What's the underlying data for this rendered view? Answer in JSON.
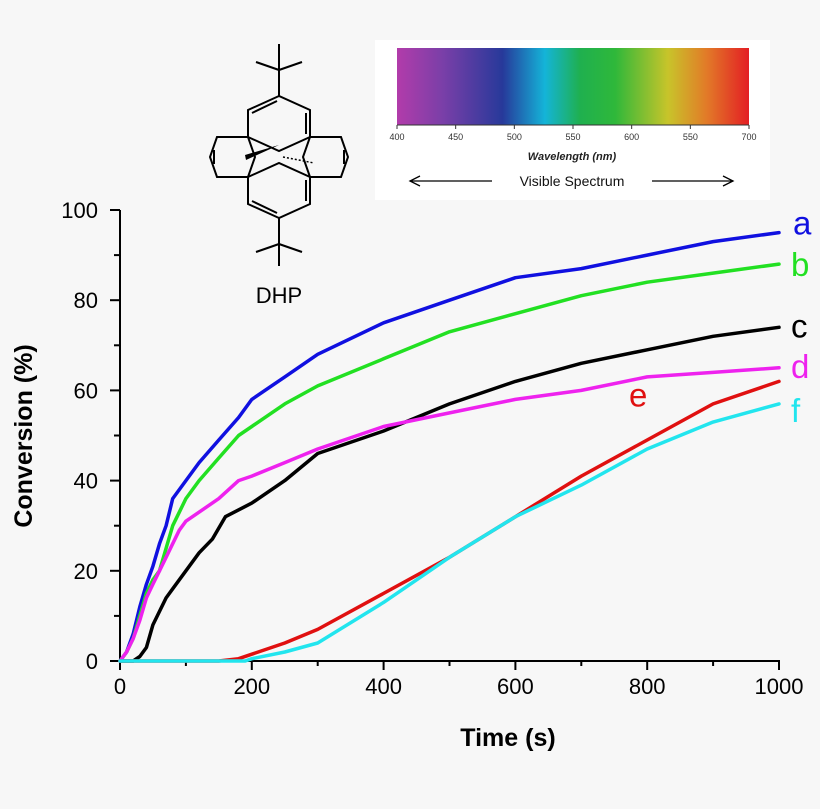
{
  "chart_data": {
    "type": "line",
    "xlabel": "Time (s)",
    "ylabel": "Conversion (%)",
    "xlim": [
      0,
      1000
    ],
    "ylim": [
      0,
      100
    ],
    "xticks": [
      "0",
      "200",
      "400",
      "600",
      "800",
      "1000"
    ],
    "yticks": [
      "0",
      "20",
      "40",
      "60",
      "80",
      "100"
    ],
    "grid": false,
    "legend": "series letters at right end of lines",
    "series": [
      {
        "name": "a",
        "color": "#1010e0",
        "x": [
          0,
          10,
          20,
          30,
          40,
          50,
          60,
          70,
          80,
          90,
          100,
          120,
          150,
          180,
          200,
          250,
          300,
          400,
          500,
          600,
          700,
          800,
          900,
          1000
        ],
        "y": [
          0,
          2,
          6,
          12,
          17,
          21,
          26,
          30,
          36,
          38,
          40,
          44,
          49,
          54,
          58,
          63,
          68,
          75,
          80,
          85,
          87,
          90,
          93,
          95
        ]
      },
      {
        "name": "b",
        "color": "#22e022",
        "x": [
          0,
          10,
          20,
          30,
          40,
          50,
          60,
          70,
          80,
          90,
          100,
          120,
          150,
          180,
          200,
          250,
          300,
          400,
          500,
          600,
          700,
          800,
          900,
          1000
        ],
        "y": [
          0,
          2,
          5,
          10,
          15,
          18,
          20,
          25,
          30,
          33,
          36,
          40,
          45,
          50,
          52,
          57,
          61,
          67,
          73,
          77,
          81,
          84,
          86,
          88
        ]
      },
      {
        "name": "c",
        "color": "#000000",
        "x": [
          0,
          20,
          30,
          40,
          50,
          60,
          70,
          80,
          90,
          100,
          120,
          140,
          160,
          200,
          250,
          300,
          400,
          500,
          600,
          700,
          800,
          900,
          1000
        ],
        "y": [
          0,
          0,
          1,
          3,
          8,
          11,
          14,
          16,
          18,
          20,
          24,
          27,
          32,
          35,
          40,
          46,
          51,
          57,
          62,
          66,
          69,
          72,
          74
        ]
      },
      {
        "name": "d",
        "color": "#ee22ee",
        "x": [
          0,
          10,
          20,
          30,
          40,
          50,
          60,
          70,
          80,
          90,
          100,
          150,
          180,
          200,
          250,
          300,
          400,
          500,
          600,
          700,
          800,
          900,
          1000
        ],
        "y": [
          0,
          2,
          5,
          9,
          14,
          17,
          20,
          23,
          26,
          29,
          31,
          36,
          40,
          41,
          44,
          47,
          52,
          55,
          58,
          60,
          63,
          64,
          65
        ]
      },
      {
        "name": "e",
        "color": "#e01010",
        "x": [
          0,
          150,
          180,
          200,
          250,
          300,
          400,
          500,
          600,
          700,
          800,
          900,
          1000
        ],
        "y": [
          0,
          0,
          0.5,
          1.5,
          4,
          7,
          15,
          23,
          32,
          41,
          49,
          57,
          62
        ]
      },
      {
        "name": "f",
        "color": "#22e5ee",
        "x": [
          0,
          190,
          200,
          250,
          300,
          400,
          500,
          600,
          700,
          800,
          900,
          1000
        ],
        "y": [
          0,
          0,
          0.5,
          2,
          4,
          13,
          23,
          32,
          39,
          47,
          53,
          57
        ]
      }
    ]
  },
  "molecule": {
    "label": "DHP"
  },
  "spectrum": {
    "ticks": [
      "400",
      "450",
      "500",
      "550",
      "600",
      "550",
      "700"
    ],
    "title": "Wavelength (nm)",
    "caption": "Visible Spectrum"
  }
}
